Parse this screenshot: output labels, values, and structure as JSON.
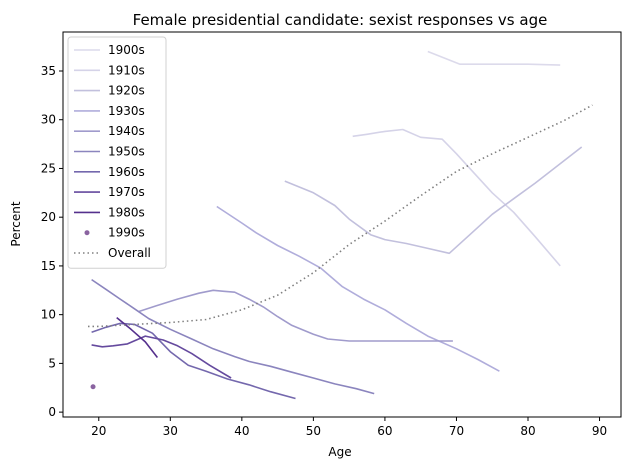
{
  "chart_data": {
    "type": "line",
    "title": "Female presidential candidate: sexist responses vs age",
    "xlabel": "Age",
    "ylabel": "Percent",
    "xlim": [
      15,
      93
    ],
    "ylim": [
      -0.5,
      39
    ],
    "xticks": [
      20,
      30,
      40,
      50,
      60,
      70,
      80,
      90
    ],
    "yticks": [
      0,
      5,
      10,
      15,
      20,
      25,
      30,
      35
    ],
    "grid": false,
    "legend": "top-left",
    "series": [
      {
        "name": "1900s",
        "color": "#dcdaeb",
        "style": "solid",
        "x": [
          66,
          70.5,
          75,
          80,
          84.5
        ],
        "y": [
          37,
          35.7,
          35.7,
          35.7,
          35.6
        ]
      },
      {
        "name": "1910s",
        "color": "#d5d3e8",
        "style": "solid",
        "x": [
          55.5,
          57.5,
          60,
          62.5,
          65,
          68,
          70,
          72.5,
          75,
          78,
          81,
          84.5
        ],
        "y": [
          28.3,
          28.5,
          28.8,
          29,
          28.2,
          28,
          26.5,
          24.5,
          22.5,
          20.5,
          18,
          15
        ]
      },
      {
        "name": "1920s",
        "color": "#c2c0dd",
        "style": "solid",
        "x": [
          46,
          50,
          53,
          55,
          58,
          60,
          63,
          66,
          69,
          72,
          75,
          78,
          81,
          84,
          87.5
        ],
        "y": [
          23.7,
          22.5,
          21.2,
          19.8,
          18.2,
          17.7,
          17.3,
          16.8,
          16.3,
          18.3,
          20.3,
          21.9,
          23.5,
          25.2,
          27.2
        ]
      },
      {
        "name": "1930s",
        "color": "#b0addb",
        "style": "solid",
        "x": [
          36.5,
          40,
          42,
          45,
          48,
          51,
          54,
          57,
          60,
          63,
          66,
          70,
          73,
          76
        ],
        "y": [
          21.1,
          19.4,
          18.4,
          17.1,
          16,
          14.8,
          12.9,
          11.6,
          10.5,
          9.1,
          7.8,
          6.5,
          5.4,
          4.2
        ]
      },
      {
        "name": "1940s",
        "color": "#a09bcc",
        "style": "solid",
        "x": [
          25.5,
          28,
          31,
          34,
          36,
          37.5,
          39,
          41,
          43,
          45,
          47,
          50,
          52,
          55,
          58,
          61,
          64,
          67,
          69.5
        ],
        "y": [
          10.3,
          10.9,
          11.6,
          12.2,
          12.5,
          12.4,
          12.3,
          11.6,
          10.8,
          9.8,
          8.9,
          8,
          7.5,
          7.3,
          7.3,
          7.3,
          7.3,
          7.3,
          7.3
        ]
      },
      {
        "name": "1950s",
        "color": "#8b85be",
        "style": "solid",
        "x": [
          19,
          21,
          23,
          25,
          27,
          30,
          33,
          36,
          39,
          41,
          44,
          47,
          50,
          53,
          56,
          58.5
        ],
        "y": [
          13.6,
          12.6,
          11.6,
          10.6,
          9.6,
          8.5,
          7.5,
          6.5,
          5.7,
          5.2,
          4.7,
          4.1,
          3.5,
          2.9,
          2.4,
          1.9
        ]
      },
      {
        "name": "1960s",
        "color": "#7468ad",
        "style": "solid",
        "x": [
          19,
          21,
          23,
          25,
          27.5,
          30,
          32.5,
          35,
          38,
          41,
          44,
          47.5
        ],
        "y": [
          8.2,
          8.7,
          9.1,
          9,
          8.1,
          6.2,
          4.8,
          4.2,
          3.4,
          2.8,
          2.1,
          1.4
        ]
      },
      {
        "name": "1970s",
        "color": "#654a9e",
        "style": "solid",
        "x": [
          19,
          20.5,
          22,
          24,
          26.5,
          29,
          31,
          33,
          35.5,
          38.5
        ],
        "y": [
          6.9,
          6.7,
          6.8,
          7,
          7.8,
          7.4,
          6.8,
          6,
          4.8,
          3.5
        ]
      },
      {
        "name": "1980s",
        "color": "#55308d",
        "style": "solid",
        "x": [
          22.5,
          24.5,
          26.5,
          28.2
        ],
        "y": [
          9.7,
          8.5,
          7.2,
          5.6
        ]
      },
      {
        "name": "1990s",
        "color": "#8a63a0",
        "style": "point",
        "x": [
          19.2
        ],
        "y": [
          2.6
        ]
      },
      {
        "name": "Overall",
        "color": "#808080",
        "style": "dotted",
        "x": [
          18.5,
          20,
          25,
          30,
          35,
          40,
          45,
          50,
          55,
          60,
          65,
          70,
          75,
          80,
          85,
          89
        ],
        "y": [
          8.8,
          8.8,
          9.0,
          9.2,
          9.5,
          10.5,
          12.0,
          14.3,
          17.2,
          19.6,
          22.2,
          24.7,
          26.5,
          28.2,
          29.9,
          31.5
        ]
      }
    ]
  }
}
